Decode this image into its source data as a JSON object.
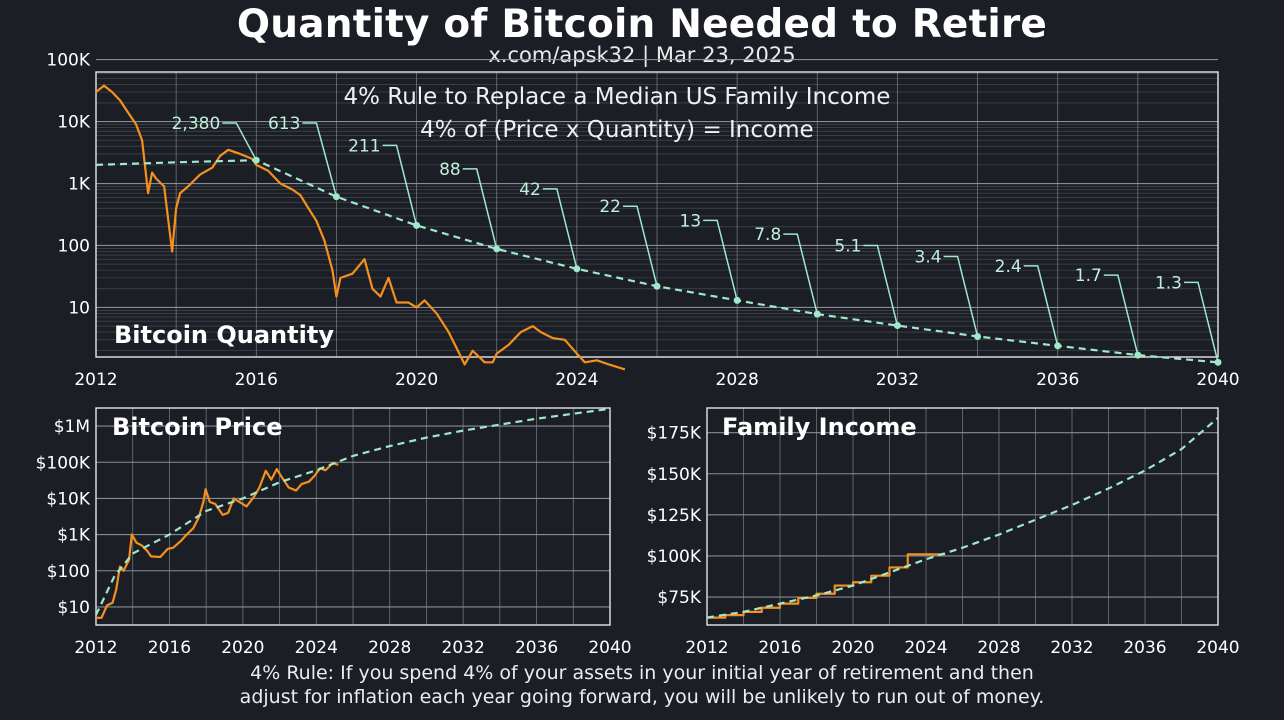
{
  "header": {
    "title": "Quantity of Bitcoin Needed to Retire",
    "subtitle": "x.com/apsk32 | Mar 23, 2025"
  },
  "footnote": {
    "line1": "4% Rule: If you spend 4% of your assets in your initial year of retirement and then",
    "line2": "adjust for inflation each year going forward, you will be unlikely to run out of money."
  },
  "colors": {
    "background": "#1b1e25",
    "grid": "#8d929a",
    "historical": "#f5901e",
    "projection": "#9fe8c8",
    "text": "#ffffff"
  },
  "chart_data": [
    {
      "type": "line",
      "title": "Bitcoin Quantity",
      "inner_title_lines": [
        "4% Rule to Replace a Median US Family Income",
        "4% of (Price x Quantity) = Income"
      ],
      "y_scale": "log",
      "xlim": [
        2012,
        2040
      ],
      "ylim_log10": [
        0.2,
        4.8
      ],
      "x_ticks": [
        2012,
        2016,
        2020,
        2024,
        2028,
        2032,
        2036,
        2040
      ],
      "y_ticks": [
        {
          "v": 10,
          "label": "10"
        },
        {
          "v": 100,
          "label": "100"
        },
        {
          "v": 1000,
          "label": "1K"
        },
        {
          "v": 10000,
          "label": "10K"
        },
        {
          "v": 100000,
          "label": "100K"
        }
      ],
      "series": [
        {
          "style": "historical",
          "points": [
            [
              2012.0,
              30000
            ],
            [
              2012.2,
              38000
            ],
            [
              2012.4,
              30000
            ],
            [
              2012.6,
              22000
            ],
            [
              2012.8,
              14000
            ],
            [
              2013.0,
              9000
            ],
            [
              2013.15,
              5000
            ],
            [
              2013.3,
              700
            ],
            [
              2013.4,
              1500
            ],
            [
              2013.5,
              1200
            ],
            [
              2013.7,
              900
            ],
            [
              2013.9,
              80
            ],
            [
              2014.0,
              400
            ],
            [
              2014.1,
              700
            ],
            [
              2014.3,
              900
            ],
            [
              2014.6,
              1400
            ],
            [
              2014.9,
              1800
            ],
            [
              2015.1,
              2800
            ],
            [
              2015.3,
              3500
            ],
            [
              2015.6,
              3000
            ],
            [
              2015.9,
              2500
            ],
            [
              2016.0,
              2000
            ],
            [
              2016.3,
              1600
            ],
            [
              2016.6,
              1000
            ],
            [
              2016.9,
              800
            ],
            [
              2017.1,
              650
            ],
            [
              2017.3,
              400
            ],
            [
              2017.5,
              250
            ],
            [
              2017.7,
              120
            ],
            [
              2017.9,
              40
            ],
            [
              2018.0,
              15
            ],
            [
              2018.1,
              30
            ],
            [
              2018.4,
              35
            ],
            [
              2018.7,
              60
            ],
            [
              2018.9,
              20
            ],
            [
              2019.1,
              15
            ],
            [
              2019.3,
              30
            ],
            [
              2019.5,
              12
            ],
            [
              2019.8,
              12
            ],
            [
              2020.0,
              10
            ],
            [
              2020.2,
              13
            ],
            [
              2020.5,
              8
            ],
            [
              2020.8,
              4
            ],
            [
              2021.0,
              2.2
            ],
            [
              2021.2,
              1.2
            ],
            [
              2021.4,
              2
            ],
            [
              2021.7,
              1.3
            ],
            [
              2021.9,
              1.3
            ],
            [
              2022.0,
              1.8
            ],
            [
              2022.3,
              2.5
            ],
            [
              2022.6,
              4
            ],
            [
              2022.9,
              5
            ],
            [
              2023.1,
              4
            ],
            [
              2023.4,
              3.2
            ],
            [
              2023.7,
              3
            ],
            [
              2024.0,
              1.8
            ],
            [
              2024.2,
              1.3
            ],
            [
              2024.5,
              1.4
            ],
            [
              2024.8,
              1.2
            ],
            [
              2025.2,
              1
            ]
          ]
        },
        {
          "style": "projection",
          "points": [
            [
              2012,
              2000
            ],
            [
              2014,
              2200
            ],
            [
              2016,
              2380
            ],
            [
              2018,
              613
            ],
            [
              2020,
              211
            ],
            [
              2022,
              88
            ],
            [
              2024,
              42
            ],
            [
              2026,
              22
            ],
            [
              2028,
              13
            ],
            [
              2030,
              7.8
            ],
            [
              2032,
              5.1
            ],
            [
              2034,
              3.4
            ],
            [
              2036,
              2.4
            ],
            [
              2038,
              1.7
            ],
            [
              2040,
              1.3
            ]
          ]
        }
      ],
      "annotations": [
        {
          "year": 2016,
          "value": 2380,
          "label": "2,380"
        },
        {
          "year": 2018,
          "value": 613,
          "label": "613"
        },
        {
          "year": 2020,
          "value": 211,
          "label": "211"
        },
        {
          "year": 2022,
          "value": 88,
          "label": "88"
        },
        {
          "year": 2024,
          "value": 42,
          "label": "42"
        },
        {
          "year": 2026,
          "value": 22,
          "label": "22"
        },
        {
          "year": 2028,
          "value": 13,
          "label": "13"
        },
        {
          "year": 2030,
          "value": 7.8,
          "label": "7.8"
        },
        {
          "year": 2032,
          "value": 5.1,
          "label": "5.1"
        },
        {
          "year": 2034,
          "value": 3.4,
          "label": "3.4"
        },
        {
          "year": 2036,
          "value": 2.4,
          "label": "2.4"
        },
        {
          "year": 2038,
          "value": 1.7,
          "label": "1.7"
        },
        {
          "year": 2040,
          "value": 1.3,
          "label": "1.3"
        }
      ]
    },
    {
      "type": "line",
      "title": "Bitcoin Price",
      "y_scale": "log",
      "xlim": [
        2012,
        2040
      ],
      "ylim_log10": [
        0.5,
        6.5
      ],
      "x_ticks": [
        2012,
        2016,
        2020,
        2024,
        2028,
        2032,
        2036,
        2040
      ],
      "y_ticks": [
        {
          "v": 10,
          "label": "$10"
        },
        {
          "v": 100,
          "label": "$100"
        },
        {
          "v": 1000,
          "label": "$1K"
        },
        {
          "v": 10000,
          "label": "$10K"
        },
        {
          "v": 100000,
          "label": "$100K"
        },
        {
          "v": 1000000,
          "label": "$1M"
        }
      ],
      "series": [
        {
          "style": "historical",
          "points": [
            [
              2012.0,
              5
            ],
            [
              2012.3,
              5
            ],
            [
              2012.6,
              11
            ],
            [
              2012.9,
              13
            ],
            [
              2013.1,
              30
            ],
            [
              2013.3,
              130
            ],
            [
              2013.5,
              100
            ],
            [
              2013.8,
              200
            ],
            [
              2013.95,
              1000
            ],
            [
              2014.2,
              600
            ],
            [
              2014.5,
              500
            ],
            [
              2014.8,
              350
            ],
            [
              2015.0,
              250
            ],
            [
              2015.5,
              240
            ],
            [
              2015.9,
              400
            ],
            [
              2016.2,
              430
            ],
            [
              2016.6,
              650
            ],
            [
              2016.9,
              950
            ],
            [
              2017.3,
              1500
            ],
            [
              2017.6,
              3000
            ],
            [
              2017.85,
              8000
            ],
            [
              2017.97,
              18000
            ],
            [
              2018.2,
              8000
            ],
            [
              2018.5,
              7000
            ],
            [
              2018.9,
              3500
            ],
            [
              2019.2,
              4000
            ],
            [
              2019.5,
              10000
            ],
            [
              2019.9,
              7500
            ],
            [
              2020.2,
              6000
            ],
            [
              2020.6,
              11000
            ],
            [
              2020.9,
              20000
            ],
            [
              2021.25,
              58000
            ],
            [
              2021.55,
              33000
            ],
            [
              2021.85,
              65000
            ],
            [
              2022.1,
              40000
            ],
            [
              2022.5,
              20000
            ],
            [
              2022.9,
              16500
            ],
            [
              2023.2,
              25000
            ],
            [
              2023.6,
              29000
            ],
            [
              2023.9,
              42000
            ],
            [
              2024.2,
              68000
            ],
            [
              2024.5,
              60000
            ],
            [
              2024.9,
              95000
            ],
            [
              2025.2,
              85000
            ]
          ]
        },
        {
          "style": "projection",
          "points": [
            [
              2012,
              6
            ],
            [
              2013,
              70
            ],
            [
              2014,
              300
            ],
            [
              2016,
              1000
            ],
            [
              2018,
              4500
            ],
            [
              2020,
              10000
            ],
            [
              2022,
              28000
            ],
            [
              2024,
              60000
            ],
            [
              2026,
              150000
            ],
            [
              2028,
              280000
            ],
            [
              2030,
              480000
            ],
            [
              2032,
              750000
            ],
            [
              2034,
              1100000
            ],
            [
              2036,
              1600000
            ],
            [
              2038,
              2200000
            ],
            [
              2040,
              3000000
            ]
          ]
        }
      ]
    },
    {
      "type": "line",
      "title": "Family Income",
      "y_scale": "linear",
      "xlim": [
        2012,
        2040
      ],
      "ylim": [
        58000,
        190000
      ],
      "x_ticks": [
        2012,
        2016,
        2020,
        2024,
        2028,
        2032,
        2036,
        2040
      ],
      "y_ticks": [
        {
          "v": 75000,
          "label": "$75K"
        },
        {
          "v": 100000,
          "label": "$100K"
        },
        {
          "v": 125000,
          "label": "$125K"
        },
        {
          "v": 150000,
          "label": "$150K"
        },
        {
          "v": 175000,
          "label": "$175K"
        }
      ],
      "series": [
        {
          "style": "historical",
          "steps": [
            [
              2012,
              62500
            ],
            [
              2013,
              64000
            ],
            [
              2014,
              66000
            ],
            [
              2015,
              68500
            ],
            [
              2016,
              71000
            ],
            [
              2017,
              74500
            ],
            [
              2018,
              77000
            ],
            [
              2019,
              82000
            ],
            [
              2020,
              84000
            ],
            [
              2021,
              88000
            ],
            [
              2022,
              93000
            ],
            [
              2023,
              101000
            ],
            [
              2025,
              101500
            ]
          ]
        },
        {
          "style": "projection",
          "points": [
            [
              2012,
              62500
            ],
            [
              2014,
              66000
            ],
            [
              2016,
              71000
            ],
            [
              2018,
              76000
            ],
            [
              2020,
              82000
            ],
            [
              2022,
              90000
            ],
            [
              2024,
              98000
            ],
            [
              2026,
              105000
            ],
            [
              2028,
              113000
            ],
            [
              2030,
              122000
            ],
            [
              2032,
              131000
            ],
            [
              2034,
              141000
            ],
            [
              2036,
              152000
            ],
            [
              2038,
              165000
            ],
            [
              2040,
              184000
            ]
          ]
        }
      ]
    }
  ]
}
